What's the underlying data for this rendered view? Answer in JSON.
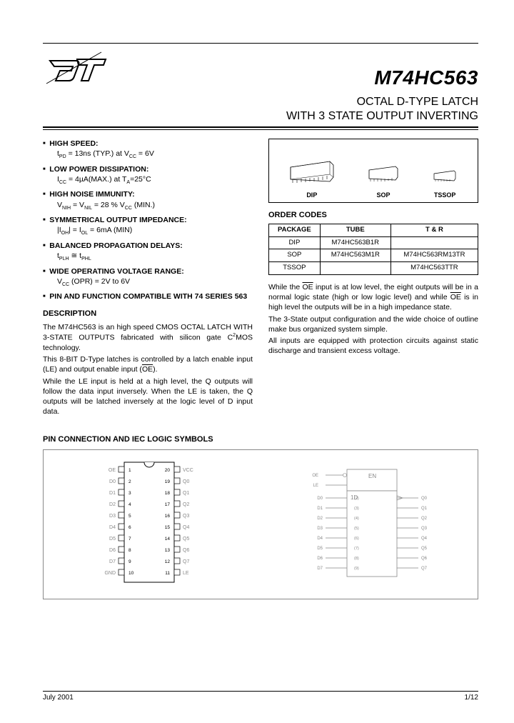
{
  "part_number": "M74HC563",
  "title_line1": "OCTAL D-TYPE LATCH",
  "title_line2": "WITH 3 STATE OUTPUT INVERTING",
  "features": [
    {
      "head": "HIGH SPEED:",
      "sub": "t<sub>PD</sub> = 13ns (TYP.) at V<sub>CC</sub> = 6V"
    },
    {
      "head": "LOW POWER DISSIPATION:",
      "sub": "I<sub>CC</sub> = 4µA(MAX.) at T<sub>A</sub>=25°C"
    },
    {
      "head": "HIGH NOISE IMMUNITY:",
      "sub": "V<sub>NIH</sub> = V<sub>NIL</sub> = 28 % V<sub>CC</sub> (MIN.)"
    },
    {
      "head": "SYMMETRICAL OUTPUT IMPEDANCE:",
      "sub": "|I<sub>OH</sub>| = I<sub>OL</sub> = 6mA (MIN)"
    },
    {
      "head": "BALANCED PROPAGATION DELAYS:",
      "sub": "t<sub>PLH</sub> ≅ t<sub>PHL</sub>"
    },
    {
      "head": "WIDE OPERATING VOLTAGE RANGE:",
      "sub": "V<sub>CC</sub> (OPR) = 2V to 6V"
    },
    {
      "head": "PIN AND FUNCTION COMPATIBLE WITH 74 SERIES 563",
      "sub": ""
    }
  ],
  "desc_heading": "DESCRIPTION",
  "desc_paragraphs": [
    "The M74HC563 is an high speed CMOS OCTAL LATCH WITH 3-STATE OUTPUTS fabricated with silicon gate C<sup>2</sup>MOS technology.",
    "This 8-BIT D-Type latches is controlled by a latch enable input (LE) and output enable input (<span class='overline'>OE</span>).",
    "While the LE input is held at a high level, the Q outputs will follow the data input inversely. When the LE is taken, the Q outputs will be latched inversely at the logic level of D input data."
  ],
  "packages": [
    "DIP",
    "SOP",
    "TSSOP"
  ],
  "order_heading": "ORDER CODES",
  "order_table": {
    "headers": [
      "PACKAGE",
      "TUBE",
      "T & R"
    ],
    "rows": [
      [
        "DIP",
        "M74HC563B1R",
        ""
      ],
      [
        "SOP",
        "M74HC563M1R",
        "M74HC563RM13TR"
      ],
      [
        "TSSOP",
        "",
        "M74HC563TTR"
      ]
    ]
  },
  "right_paragraphs": [
    "While the <span class='overline'>OE</span> input is at low level, the eight outputs will be in a normal logic state (high or low logic level) and while <span class='overline'>OE</span> is in high level the outputs will be in a high impedance state.",
    "The 3-State output configuration and the wide choice of outline make bus organized system simple.",
    "All inputs are equipped with protection circuits against static discharge and transient excess voltage."
  ],
  "pin_section_title": "PIN CONNECTION AND IEC LOGIC SYMBOLS",
  "pin_labels_left": [
    "OE",
    "D0",
    "D1",
    "D2",
    "D3",
    "D4",
    "D5",
    "D6",
    "D7",
    "GND"
  ],
  "pin_labels_right": [
    "VCC",
    "Q0",
    "Q1",
    "Q2",
    "Q3",
    "Q4",
    "Q5",
    "Q6",
    "Q7",
    "LE"
  ],
  "footer_date": "July 2001",
  "footer_page": "1/12",
  "colors": {
    "text": "#000000",
    "bg": "#ffffff",
    "light": "#888888"
  }
}
